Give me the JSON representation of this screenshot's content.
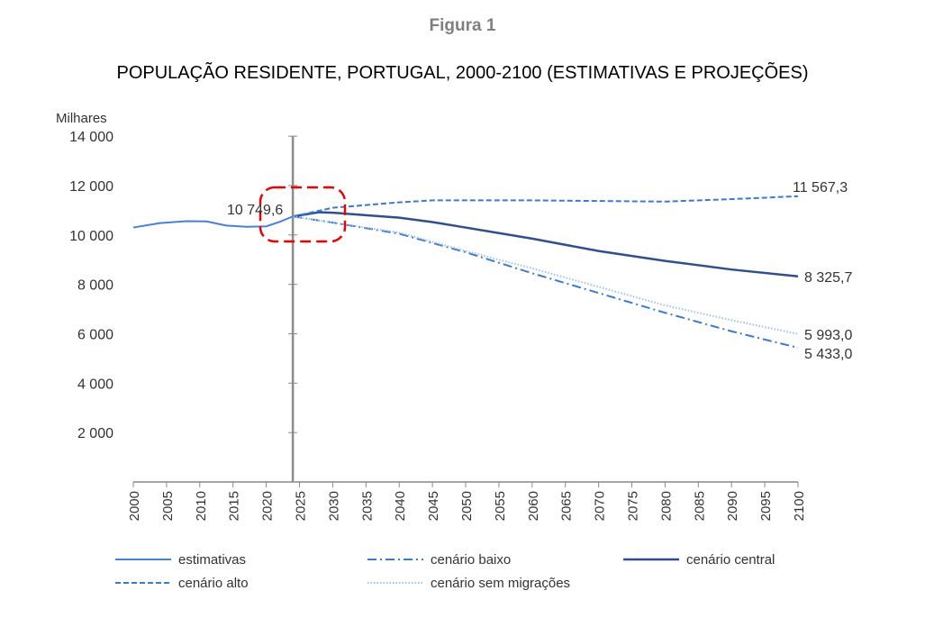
{
  "figure_label": "Figura 1",
  "chart_data": {
    "type": "line",
    "title": "POPULAÇÃO RESIDENTE, PORTUGAL, 2000-2100 (ESTIMATIVAS E PROJEÇÕES)",
    "ylabel": "Milhares",
    "xlabel": "",
    "ylim": [
      0,
      14000
    ],
    "xlim": [
      2000,
      2100
    ],
    "y_ticks": [
      "2 000",
      "4 000",
      "6 000",
      "8 000",
      "10 000",
      "12 000",
      "14 000"
    ],
    "y_tick_values": [
      2000,
      4000,
      6000,
      8000,
      10000,
      12000,
      14000
    ],
    "x_ticks": [
      2000,
      2005,
      2010,
      2015,
      2020,
      2025,
      2030,
      2035,
      2040,
      2045,
      2050,
      2055,
      2060,
      2065,
      2070,
      2075,
      2080,
      2085,
      2090,
      2095,
      2100
    ],
    "legend_position": "bottom",
    "series": [
      {
        "name": "estimativas",
        "color": "#4a7fd6",
        "style": "solid",
        "x": [
          2000,
          2004,
          2008,
          2011,
          2014,
          2017,
          2020,
          2022,
          2024
        ],
        "values": [
          10300,
          10480,
          10560,
          10550,
          10380,
          10330,
          10350,
          10530,
          10749.6
        ]
      },
      {
        "name": "cenário baixo",
        "color": "#3c78d8",
        "style": "dashdot",
        "x": [
          2024,
          2030,
          2040,
          2050,
          2060,
          2070,
          2080,
          2090,
          2100
        ],
        "values": [
          10749.6,
          10500,
          10050,
          9300,
          8450,
          7650,
          6850,
          6100,
          5433.0
        ]
      },
      {
        "name": "cenário central",
        "color": "#2f4f8f",
        "style": "solid",
        "x": [
          2024,
          2028,
          2030,
          2035,
          2040,
          2045,
          2050,
          2060,
          2070,
          2080,
          2090,
          2100
        ],
        "values": [
          10749.6,
          10920,
          10900,
          10800,
          10700,
          10520,
          10300,
          9850,
          9350,
          8950,
          8600,
          8325.7
        ]
      },
      {
        "name": "cenário alto",
        "color": "#3c78d8",
        "style": "dashed",
        "x": [
          2024,
          2030,
          2040,
          2045,
          2060,
          2080,
          2090,
          2100
        ],
        "values": [
          10749.6,
          11100,
          11320,
          11400,
          11400,
          11350,
          11450,
          11567.3
        ]
      },
      {
        "name": "cenário sem migrações",
        "color": "#9dc3e6",
        "style": "dotted",
        "x": [
          2024,
          2030,
          2040,
          2050,
          2060,
          2070,
          2080,
          2090,
          2100
        ],
        "values": [
          10749.6,
          10500,
          10100,
          9350,
          8650,
          7900,
          7150,
          6550,
          5993.0
        ]
      }
    ],
    "annotations": [
      {
        "text": "10 749,6",
        "x": 2024,
        "y": 10749.6
      },
      {
        "text": "11 567,3",
        "x": 2100,
        "y": 11567.3
      },
      {
        "text": "8 325,7",
        "x": 2100,
        "y": 8325.7
      },
      {
        "text": "5 993,0",
        "x": 2100,
        "y": 5993.0
      },
      {
        "text": "5 433,0",
        "x": 2100,
        "y": 5433.0
      }
    ]
  }
}
